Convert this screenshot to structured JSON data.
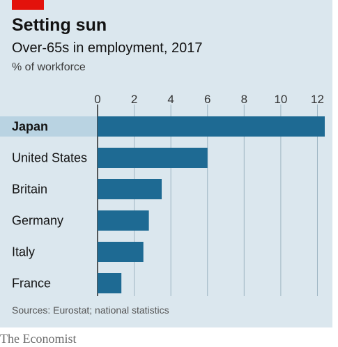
{
  "header": {
    "title": "Setting sun",
    "subtitle": "Over-65s in employment, 2017",
    "unit": "% of workforce"
  },
  "footer": {
    "source": "Sources: Eurostat; national statistics",
    "brand": "The Economist"
  },
  "colors": {
    "bar": "#1e6a93",
    "highlight_band": "#b9d3e2",
    "brand_tag": "#e3120b"
  },
  "chart_data": {
    "type": "bar",
    "orientation": "horizontal",
    "title": "Setting sun",
    "subtitle": "Over-65s in employment, 2017",
    "unit": "% of workforce",
    "categories": [
      "Japan",
      "United States",
      "Britain",
      "Germany",
      "Italy",
      "France"
    ],
    "values": [
      12.4,
      6.0,
      3.5,
      2.8,
      2.5,
      1.3
    ],
    "highlighted": "Japan",
    "xlim": [
      0,
      12.4
    ],
    "xticks": [
      0,
      2,
      4,
      6,
      8,
      10,
      12
    ],
    "axis_position": "top",
    "grid": true
  }
}
